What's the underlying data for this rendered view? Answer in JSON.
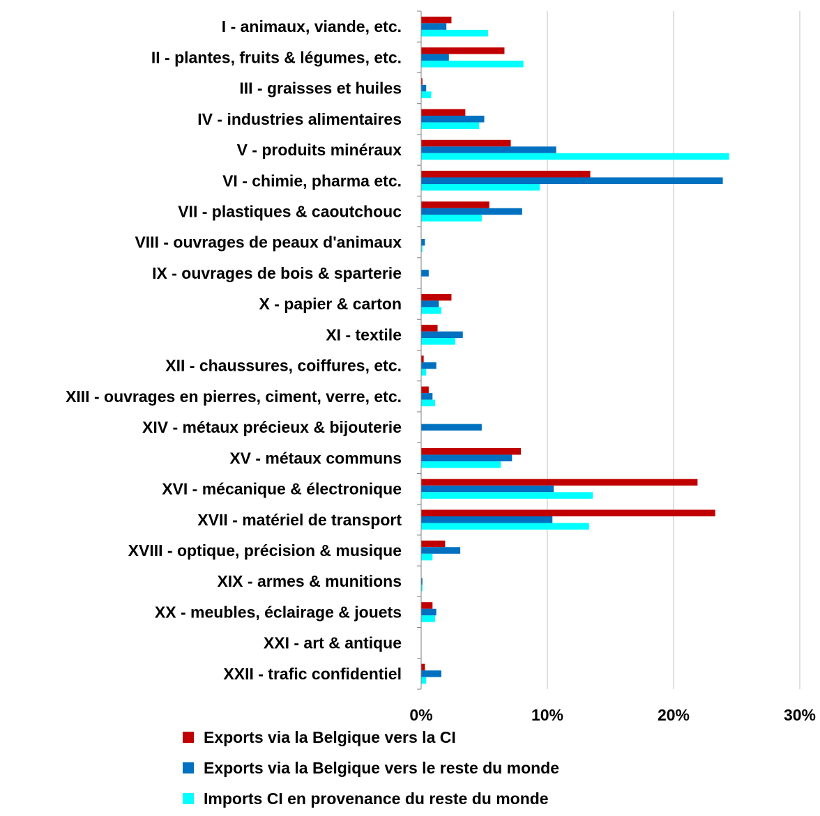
{
  "chart_data": {
    "type": "bar",
    "orientation": "horizontal",
    "categories": [
      "I - animaux, viande, etc.",
      "II - plantes, fruits & légumes, etc.",
      "III - graisses et huiles",
      "IV - industries alimentaires",
      "V - produits minéraux",
      "VI - chimie, pharma etc.",
      "VII - plastiques & caoutchouc",
      "VIII - ouvrages de peaux d'animaux",
      "IX - ouvrages de bois & sparterie",
      "X - papier & carton",
      "XI - textile",
      "XII - chaussures, coiffures, etc.",
      "XIII - ouvrages en pierres, ciment, verre, etc.",
      "XIV - métaux précieux & bijouterie",
      "XV - métaux communs",
      "XVI - mécanique & électronique",
      "XVII - matériel de transport",
      "XVIII - optique, précision & musique",
      "XIX - armes & munitions",
      "XX - meubles, éclairage & jouets",
      "XXI - art & antique",
      "XXII - trafic confidentiel"
    ],
    "series": [
      {
        "name": "Exports via la Belgique vers la CI",
        "color": "#c00000",
        "values": [
          2.4,
          6.6,
          0.1,
          3.5,
          7.1,
          13.4,
          5.4,
          0.0,
          0.0,
          2.4,
          1.3,
          0.2,
          0.6,
          0.0,
          7.9,
          21.9,
          23.3,
          1.9,
          0.0,
          0.9,
          0.0,
          0.3
        ]
      },
      {
        "name": "Exports via la Belgique vers le reste du monde",
        "color": "#0070c0",
        "values": [
          2.0,
          2.2,
          0.4,
          5.0,
          10.7,
          23.9,
          8.0,
          0.3,
          0.6,
          1.4,
          3.3,
          1.2,
          0.9,
          4.8,
          7.2,
          10.5,
          10.4,
          3.1,
          0.1,
          1.2,
          0.0,
          1.6
        ]
      },
      {
        "name": "Imports CI en provenance du reste du monde",
        "color": "#00ffff",
        "values": [
          5.3,
          8.1,
          0.8,
          4.6,
          24.4,
          9.4,
          4.8,
          0.1,
          0.0,
          1.6,
          2.7,
          0.4,
          1.1,
          0.0,
          6.3,
          13.6,
          13.3,
          0.9,
          0.1,
          1.1,
          0.0,
          0.4
        ]
      }
    ],
    "xlim": [
      0,
      30
    ],
    "xticks": [
      "0%",
      "10%",
      "20%",
      "30%"
    ],
    "grid": true,
    "legend_position": "bottom"
  }
}
